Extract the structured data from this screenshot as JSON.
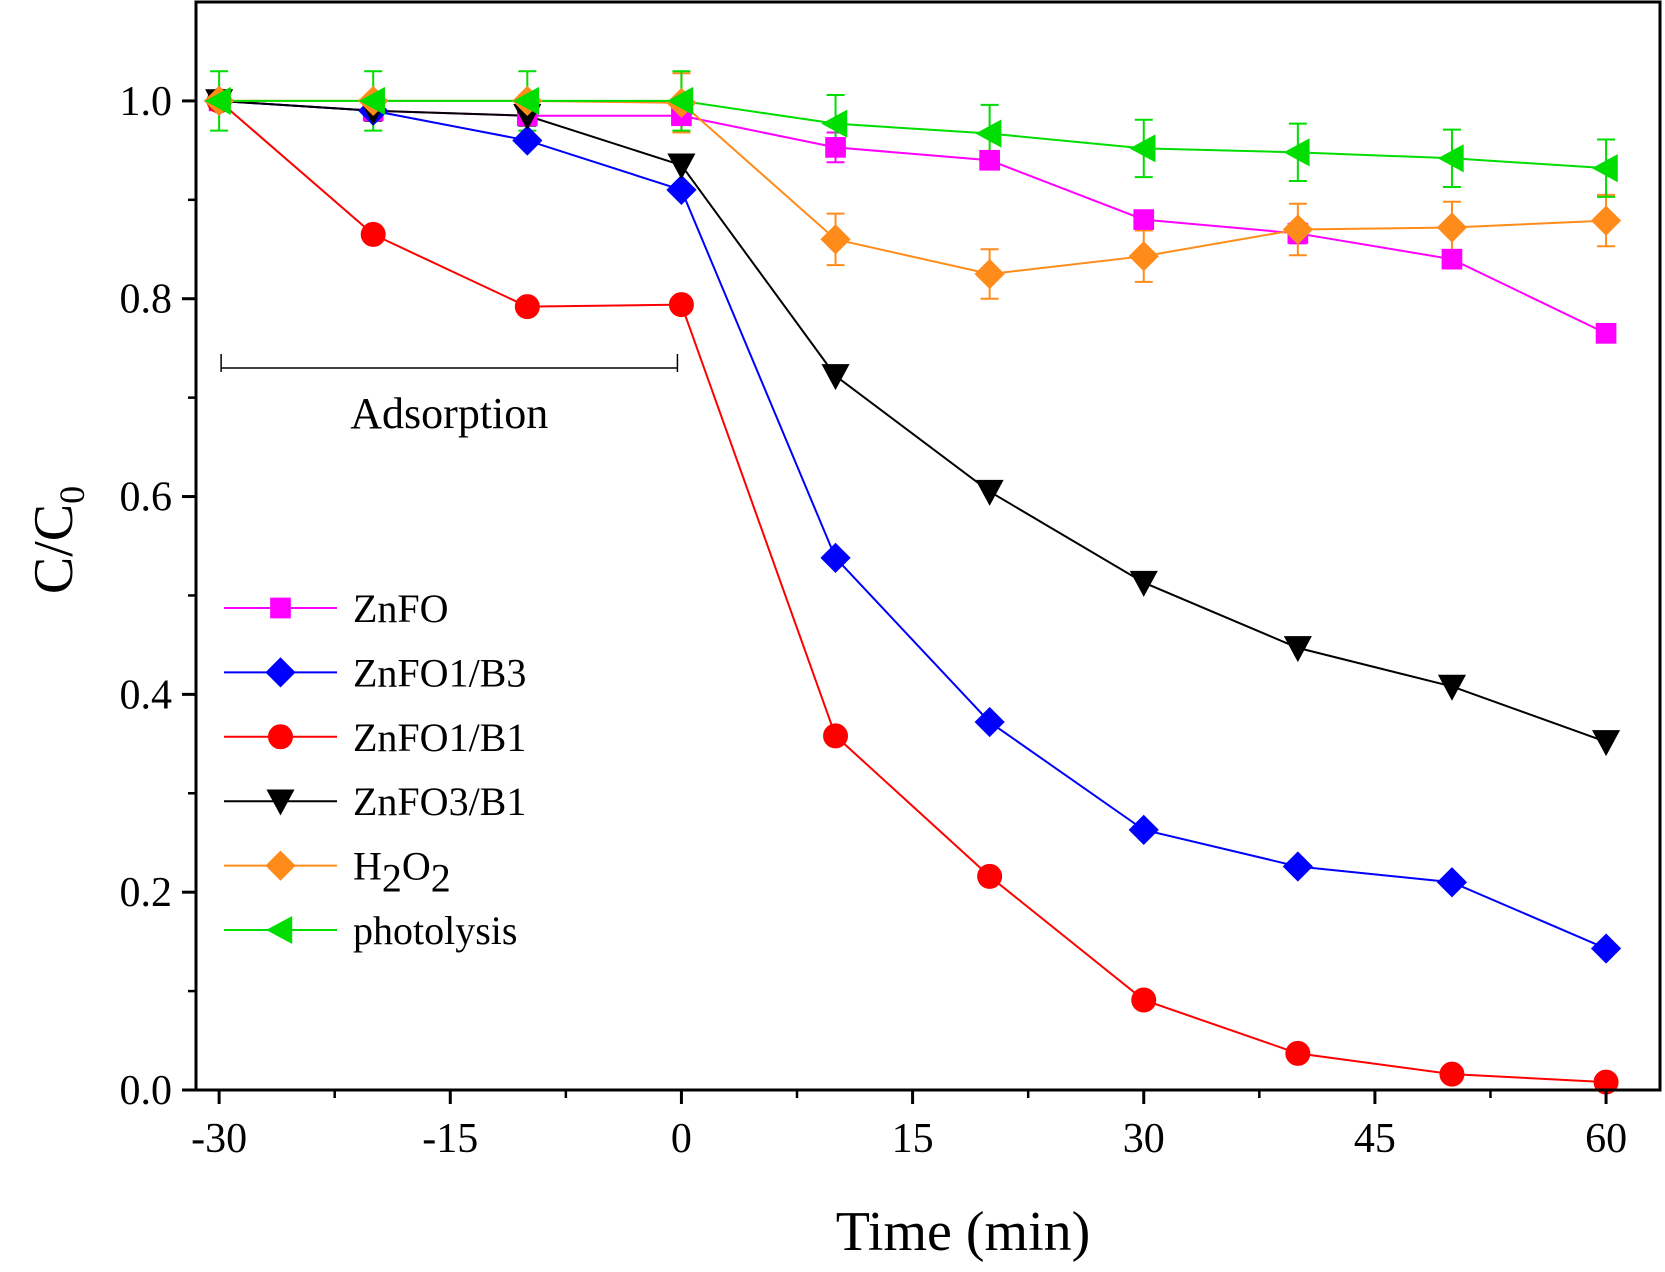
{
  "chart_data": {
    "type": "line",
    "xlabel": "Time (min)",
    "ylabel": {
      "main": "C/C",
      "sub": "0"
    },
    "xlim": [
      -31.5,
      63.5
    ],
    "ylim": [
      0,
      1.1
    ],
    "x_ticks": [
      -30,
      -15,
      0,
      15,
      30,
      45,
      60
    ],
    "x_tick_labels": [
      "-30",
      "-15",
      "0",
      "15",
      "30",
      "45",
      "60"
    ],
    "x_minor_ticks": [
      -22.5,
      -7.5,
      7.5,
      22.5,
      37.5,
      52.5
    ],
    "y_ticks": [
      0.0,
      0.2,
      0.4,
      0.6,
      0.8,
      1.0
    ],
    "y_tick_labels": [
      "0.0",
      "0.2",
      "0.4",
      "0.6",
      "0.8",
      "1.0"
    ],
    "y_minor_ticks": [
      0.1,
      0.3,
      0.5,
      0.7,
      0.9
    ],
    "grid": false,
    "legend_position": "left",
    "x": [
      -30,
      -20,
      -10,
      0,
      10,
      20,
      30,
      40,
      50,
      60
    ],
    "annotation": {
      "text": "Adsorption",
      "x_start": -30,
      "x_end": 0,
      "y": 0.73
    },
    "series": [
      {
        "name": "ZnFO",
        "legend_parts": [
          {
            "t": "ZnFO"
          }
        ],
        "color": "#ff00ff",
        "marker": "square",
        "values": [
          1.0,
          0.99,
          0.985,
          0.985,
          0.953,
          0.94,
          0.88,
          0.866,
          0.84,
          0.765
        ],
        "errors": [
          0,
          0,
          0,
          0,
          0.015,
          0,
          0,
          0.01,
          0,
          0
        ]
      },
      {
        "name": "ZnFO1/B3",
        "legend_parts": [
          {
            "t": "ZnFO1/B3"
          }
        ],
        "color": "#0000ff",
        "marker": "diamond",
        "values": [
          1.0,
          0.99,
          0.96,
          0.91,
          0.538,
          0.372,
          0.263,
          0.226,
          0.21,
          0.143
        ],
        "errors": [
          0,
          0,
          0,
          0,
          0,
          0,
          0,
          0,
          0,
          0
        ]
      },
      {
        "name": "ZnFO1/B1",
        "legend_parts": [
          {
            "t": "ZnFO1/B1"
          }
        ],
        "color": "#ff0000",
        "marker": "circle",
        "values": [
          1.0,
          0.865,
          0.792,
          0.794,
          0.358,
          0.216,
          0.091,
          0.037,
          0.016,
          0.008
        ],
        "errors": [
          0,
          0,
          0,
          0,
          0,
          0,
          0,
          0,
          0,
          0
        ]
      },
      {
        "name": "ZnFO3/B1",
        "legend_parts": [
          {
            "t": "ZnFO3/B1"
          }
        ],
        "color": "#000000",
        "marker": "triangle-down",
        "values": [
          1.0,
          0.99,
          0.985,
          0.935,
          0.722,
          0.605,
          0.513,
          0.447,
          0.408,
          0.352
        ],
        "errors": [
          0,
          0.01,
          0.01,
          0,
          0,
          0,
          0,
          0,
          0,
          0
        ]
      },
      {
        "name": "H2O2",
        "legend_parts": [
          {
            "t": "H"
          },
          {
            "t": "2",
            "sub": true
          },
          {
            "t": "O"
          },
          {
            "t": "2",
            "sub": true
          }
        ],
        "color": "#ff8c1a",
        "marker": "diamond",
        "values": [
          1.0,
          1.0,
          1.0,
          0.998,
          0.86,
          0.825,
          0.843,
          0.87,
          0.872,
          0.879
        ],
        "errors": [
          0,
          0,
          0,
          0.03,
          0.026,
          0.025,
          0.026,
          0.026,
          0.026,
          0.026
        ]
      },
      {
        "name": "photolysis",
        "legend_parts": [
          {
            "t": "photolysis"
          }
        ],
        "color": "#00dd00",
        "marker": "triangle-left",
        "values": [
          1.0,
          1.0,
          1.0,
          1.0,
          0.977,
          0.967,
          0.952,
          0.948,
          0.942,
          0.932
        ],
        "errors": [
          0.03,
          0.03,
          0.03,
          0.03,
          0.029,
          0.029,
          0.029,
          0.029,
          0.029,
          0.029
        ]
      }
    ]
  }
}
